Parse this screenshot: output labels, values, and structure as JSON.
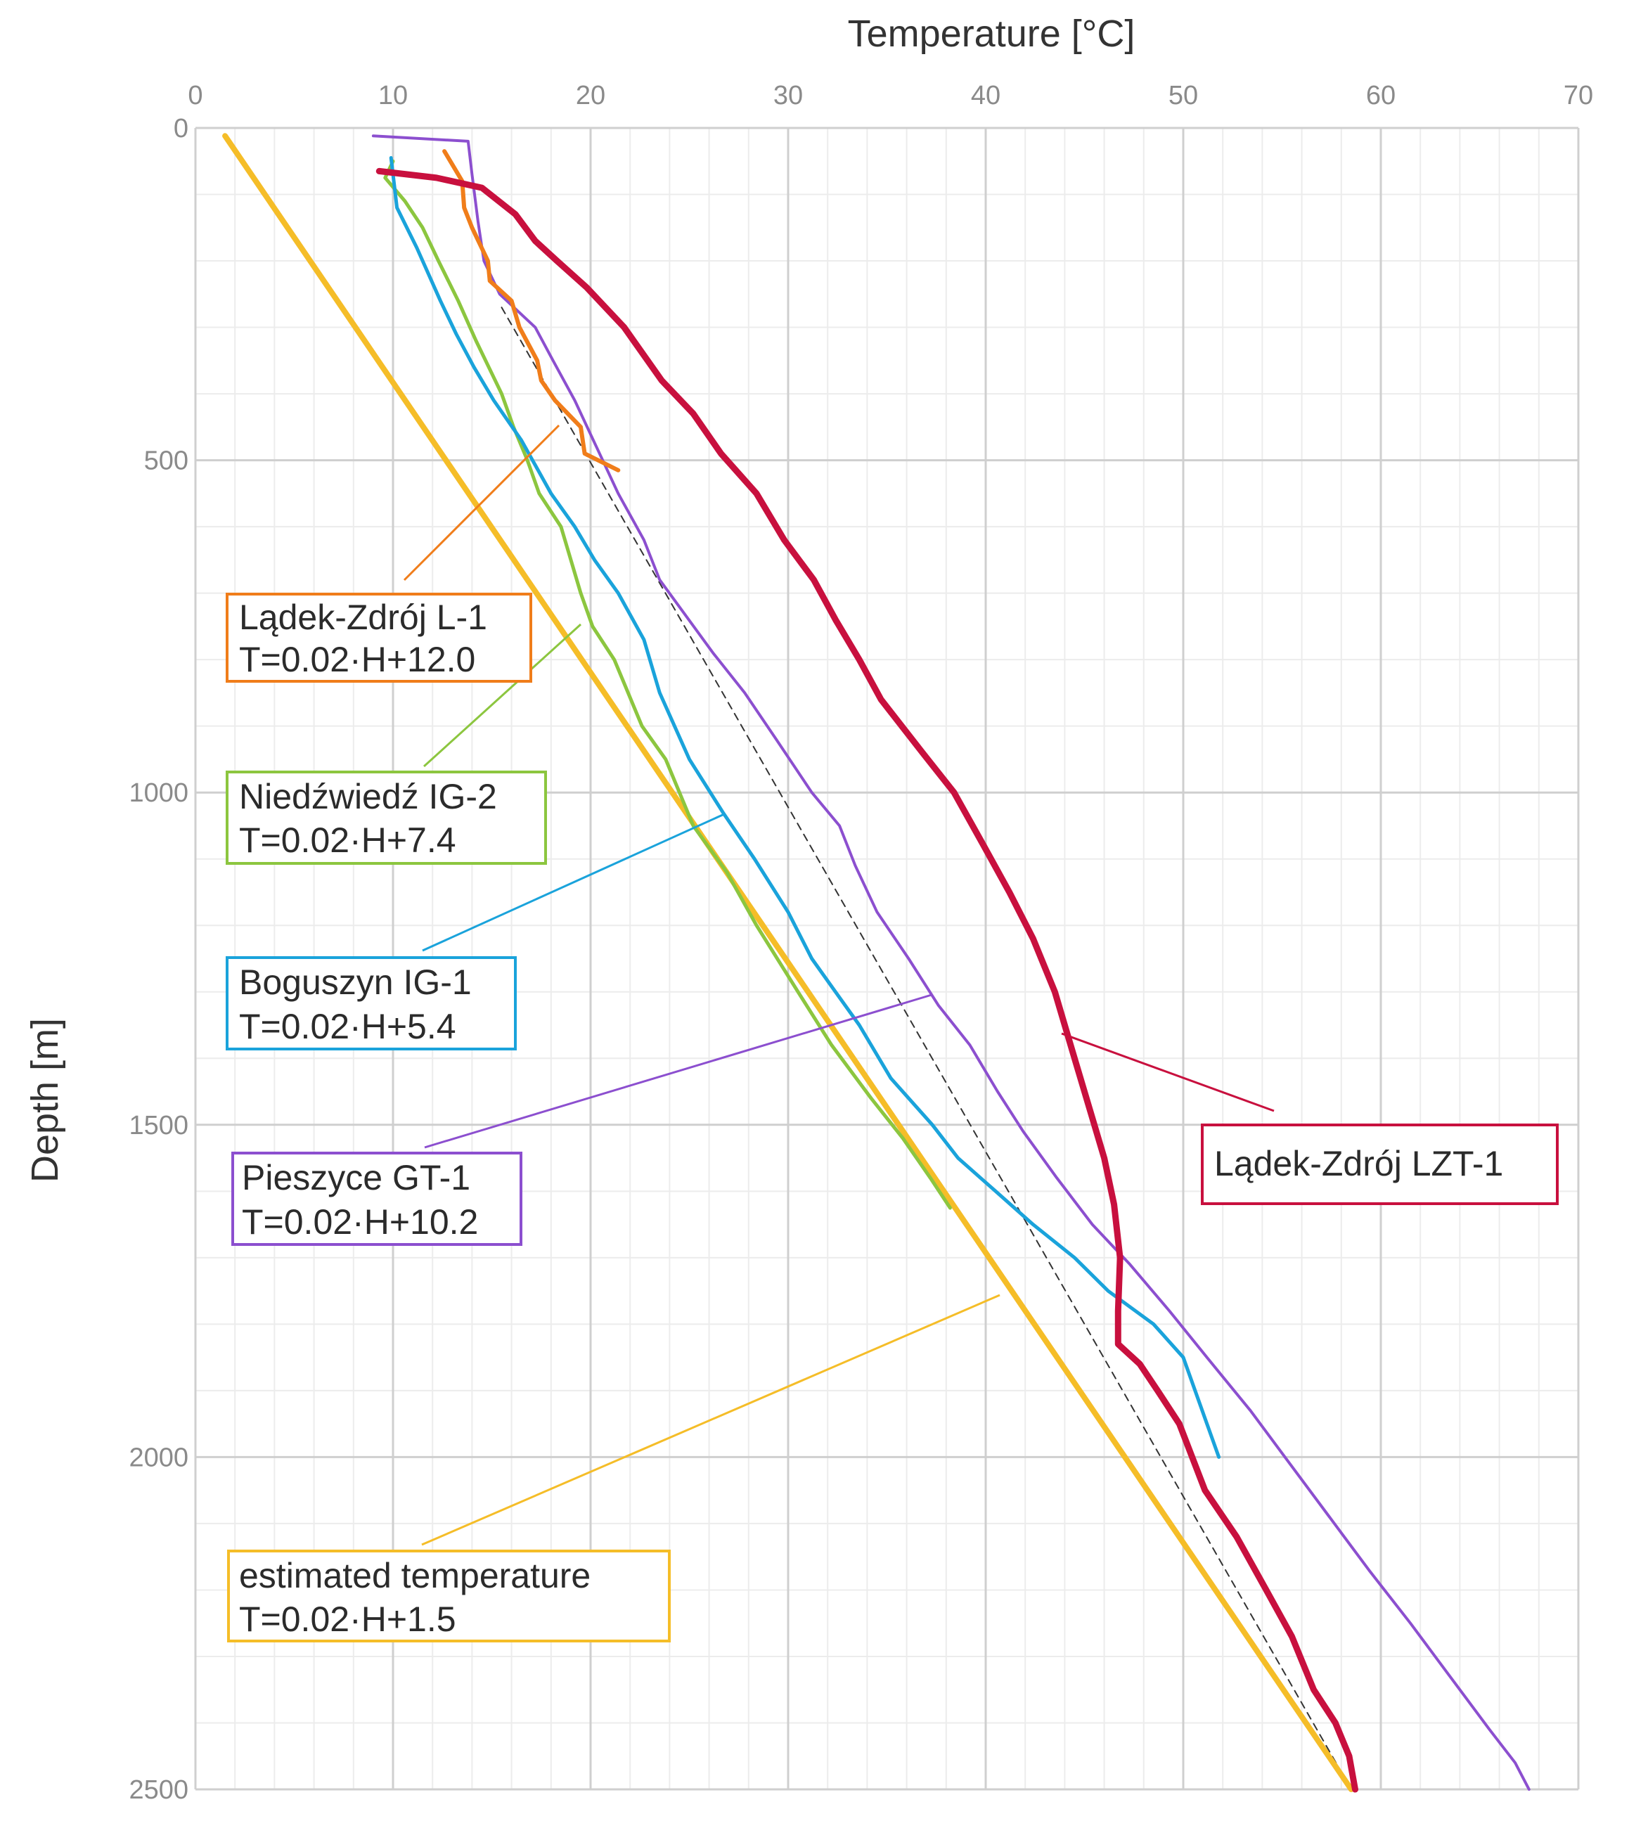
{
  "chart_data": {
    "type": "line",
    "title": "",
    "xlabel": "Temperature [°C]",
    "ylabel": "Depth [m]",
    "xlim": [
      0,
      70
    ],
    "ylim": [
      0,
      2500
    ],
    "x_ticks": [
      "0",
      "10",
      "20",
      "30",
      "40",
      "50",
      "60",
      "70"
    ],
    "y_ticks": [
      "0",
      "500",
      "1000",
      "1500",
      "2000",
      "2500"
    ],
    "x_tick_values": [
      0,
      10,
      20,
      30,
      40,
      50,
      60,
      70
    ],
    "y_tick_values": [
      0,
      500,
      1000,
      1500,
      2000,
      2500
    ],
    "grid": true,
    "series": [
      {
        "name": "Lądek-Zdrój L-1",
        "color": "#f07d1a",
        "points": [
          [
            12.6,
            35
          ],
          [
            13.5,
            80
          ],
          [
            13.6,
            120
          ],
          [
            14,
            150
          ],
          [
            14.8,
            200
          ],
          [
            14.9,
            230
          ],
          [
            16,
            260
          ],
          [
            16.4,
            300
          ],
          [
            17.3,
            350
          ],
          [
            17.5,
            380
          ],
          [
            18.2,
            410
          ],
          [
            19.5,
            450
          ],
          [
            19.7,
            490
          ],
          [
            21.4,
            515
          ]
        ]
      },
      {
        "name": "Niedźwiedź IG-2",
        "color": "#8cc63f",
        "points": [
          [
            10,
            50
          ],
          [
            9.6,
            75
          ],
          [
            10.6,
            110
          ],
          [
            11.5,
            150
          ],
          [
            12.3,
            200
          ],
          [
            13.3,
            260
          ],
          [
            14.2,
            320
          ],
          [
            15.5,
            400
          ],
          [
            16.1,
            450
          ],
          [
            16.8,
            500
          ],
          [
            17.4,
            550
          ],
          [
            18.5,
            600
          ],
          [
            19.5,
            700
          ],
          [
            20.1,
            750
          ],
          [
            21.2,
            800
          ],
          [
            22.6,
            900
          ],
          [
            23.8,
            950
          ],
          [
            25.2,
            1050
          ],
          [
            26.9,
            1120
          ],
          [
            28.4,
            1200
          ],
          [
            30.5,
            1300
          ],
          [
            32.2,
            1380
          ],
          [
            34.2,
            1460
          ],
          [
            35.8,
            1520
          ],
          [
            37.2,
            1580
          ],
          [
            38.2,
            1625
          ]
        ]
      },
      {
        "name": "Boguszyn IG-1",
        "color": "#1aa3db",
        "points": [
          [
            9.9,
            45
          ],
          [
            10.2,
            120
          ],
          [
            11.2,
            180
          ],
          [
            12.4,
            260
          ],
          [
            13.2,
            310
          ],
          [
            14.1,
            360
          ],
          [
            15.1,
            410
          ],
          [
            16.5,
            470
          ],
          [
            18,
            550
          ],
          [
            19.2,
            600
          ],
          [
            20.2,
            650
          ],
          [
            21.4,
            700
          ],
          [
            22.7,
            770
          ],
          [
            23.5,
            850
          ],
          [
            25,
            950
          ],
          [
            26.7,
            1030
          ],
          [
            28.3,
            1100
          ],
          [
            30,
            1180
          ],
          [
            31.2,
            1250
          ],
          [
            32.4,
            1300
          ],
          [
            33.6,
            1350
          ],
          [
            35.2,
            1430
          ],
          [
            37.3,
            1500
          ],
          [
            38.6,
            1550
          ],
          [
            40.5,
            1600
          ],
          [
            42.4,
            1650
          ],
          [
            44.5,
            1700
          ],
          [
            46.2,
            1750
          ],
          [
            48.5,
            1800
          ],
          [
            50,
            1850
          ],
          [
            51.2,
            1950
          ],
          [
            51.8,
            2000
          ]
        ]
      },
      {
        "name": "Pieszyce GT-1",
        "color": "#8c4fcf",
        "points": [
          [
            9,
            12
          ],
          [
            13.8,
            20
          ],
          [
            14,
            70
          ],
          [
            14.3,
            140
          ],
          [
            14.6,
            200
          ],
          [
            15.4,
            250
          ],
          [
            17.2,
            300
          ],
          [
            18.1,
            350
          ],
          [
            19.2,
            410
          ],
          [
            20.3,
            480
          ],
          [
            21.4,
            550
          ],
          [
            22.7,
            620
          ],
          [
            23.5,
            680
          ],
          [
            26.2,
            790
          ],
          [
            27.8,
            850
          ],
          [
            29.4,
            920
          ],
          [
            31.2,
            1000
          ],
          [
            32.6,
            1050
          ],
          [
            33.4,
            1110
          ],
          [
            34.5,
            1180
          ],
          [
            36.1,
            1250
          ],
          [
            37.6,
            1320
          ],
          [
            39.2,
            1380
          ],
          [
            40.6,
            1450
          ],
          [
            41.9,
            1510
          ],
          [
            43.6,
            1580
          ],
          [
            45.4,
            1650
          ],
          [
            47.3,
            1710
          ],
          [
            49.3,
            1780
          ],
          [
            51.2,
            1850
          ],
          [
            53.4,
            1930
          ],
          [
            55.4,
            2010
          ],
          [
            57.4,
            2090
          ],
          [
            59.4,
            2170
          ],
          [
            61.5,
            2250
          ],
          [
            63.5,
            2330
          ],
          [
            65.5,
            2410
          ],
          [
            66.8,
            2460
          ],
          [
            67.5,
            2500
          ]
        ]
      },
      {
        "name": "Lądek-Zdrój LZT-1",
        "color": "#c8103e",
        "points": [
          [
            9.3,
            65
          ],
          [
            12.2,
            75
          ],
          [
            14.5,
            90
          ],
          [
            16.2,
            130
          ],
          [
            17.2,
            170
          ],
          [
            18.3,
            200
          ],
          [
            19.8,
            240
          ],
          [
            21.7,
            300
          ],
          [
            23.6,
            380
          ],
          [
            25.2,
            430
          ],
          [
            26.6,
            490
          ],
          [
            28.4,
            550
          ],
          [
            29.8,
            620
          ],
          [
            31.3,
            680
          ],
          [
            32.4,
            740
          ],
          [
            33.6,
            800
          ],
          [
            34.7,
            860
          ],
          [
            36.8,
            940
          ],
          [
            38.4,
            1000
          ],
          [
            39.9,
            1080
          ],
          [
            41.2,
            1150
          ],
          [
            42.4,
            1220
          ],
          [
            43.5,
            1300
          ],
          [
            44.5,
            1400
          ],
          [
            45.3,
            1480
          ],
          [
            46,
            1550
          ],
          [
            46.5,
            1620
          ],
          [
            46.8,
            1700
          ],
          [
            46.7,
            1780
          ],
          [
            46.7,
            1830
          ],
          [
            47.8,
            1860
          ],
          [
            48.7,
            1900
          ],
          [
            49.8,
            1950
          ],
          [
            51.1,
            2050
          ],
          [
            52.7,
            2120
          ],
          [
            54.2,
            2200
          ],
          [
            55.5,
            2270
          ],
          [
            56.6,
            2350
          ],
          [
            57.7,
            2400
          ],
          [
            58.4,
            2450
          ],
          [
            58.7,
            2500
          ]
        ]
      },
      {
        "name": "estimated temperature",
        "color": "#f5bd28",
        "points": [
          [
            1.5,
            12
          ],
          [
            58.5,
            2500
          ]
        ]
      },
      {
        "name": "reference gradient",
        "color": "#333333",
        "dashed": true,
        "points": [
          [
            15.5,
            270
          ],
          [
            58.5,
            2500
          ]
        ]
      }
    ],
    "annotations": [
      {
        "series": "Lądek-Zdrój L-1",
        "color": "#f07d1a",
        "line1": "Lądek-Zdrój L-1",
        "line2": "T=0.02·H+12.0"
      },
      {
        "series": "Niedźwiedź IG-2",
        "color": "#8cc63f",
        "line1": "Niedźwiedź IG-2",
        "line2": "T=0.02·H+7.4"
      },
      {
        "series": "Boguszyn IG-1",
        "color": "#1aa3db",
        "line1": "Boguszyn IG-1",
        "line2": "T=0.02·H+5.4"
      },
      {
        "series": "Pieszyce GT-1",
        "color": "#8c4fcf",
        "line1": "Pieszyce GT-1",
        "line2": "T=0.02·H+10.2"
      },
      {
        "series": "Lądek-Zdrój LZT-1",
        "color": "#c8103e",
        "line1": "Lądek-Zdrój LZT-1",
        "line2": ""
      },
      {
        "series": "estimated temperature",
        "color": "#f5bd28",
        "line1": "estimated temperature",
        "line2": "T=0.02·H+1.5"
      }
    ]
  }
}
